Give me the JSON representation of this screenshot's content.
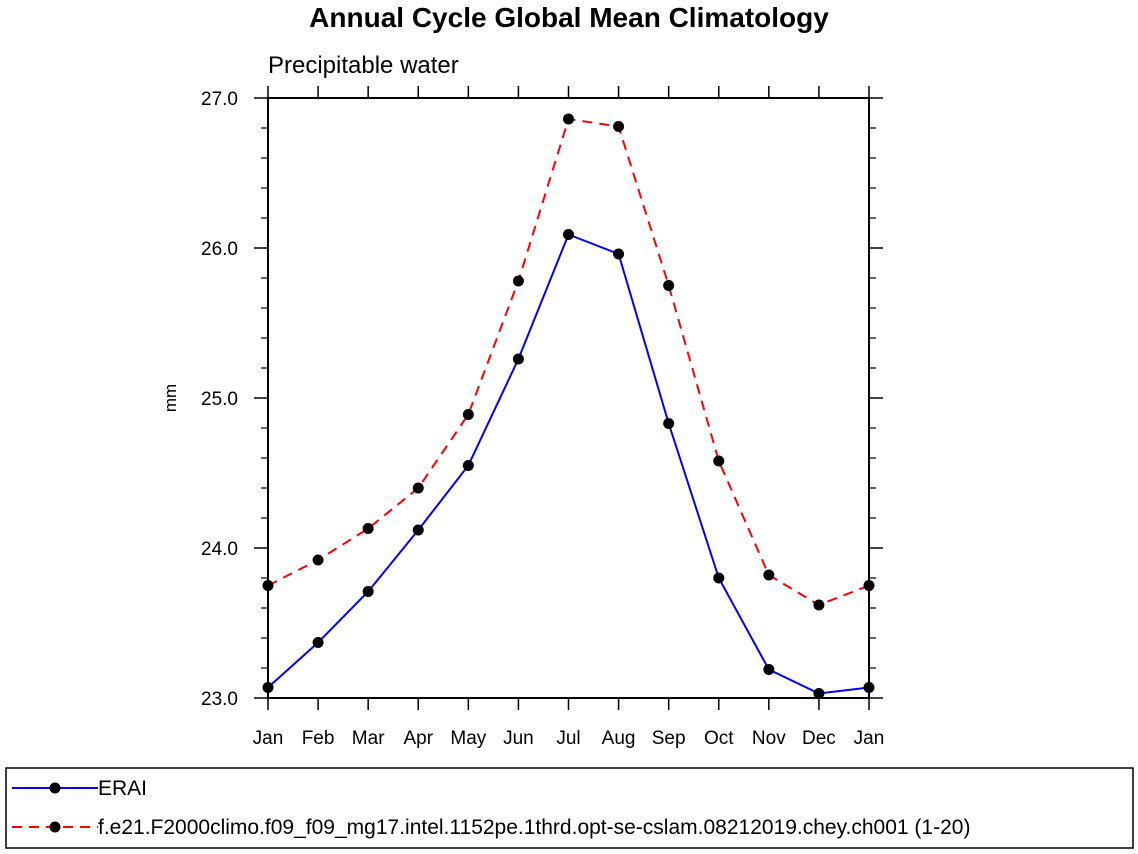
{
  "chart_data": {
    "type": "line",
    "title": "Annual Cycle Global Mean Climatology",
    "subtitle": "Precipitable water",
    "xlabel": "",
    "ylabel": "mm",
    "categories": [
      "Jan",
      "Feb",
      "Mar",
      "Apr",
      "May",
      "Jun",
      "Jul",
      "Aug",
      "Sep",
      "Oct",
      "Nov",
      "Dec",
      "Jan"
    ],
    "ylim": [
      23.0,
      27.0
    ],
    "yticks": [
      "23.0",
      "24.0",
      "25.0",
      "26.0",
      "27.0"
    ],
    "grid": false,
    "legend_position": "bottom",
    "series": [
      {
        "name": "ERAI",
        "color": "#0000ff",
        "line_style": "solid",
        "marker": "filled-circle",
        "values": [
          23.07,
          23.37,
          23.71,
          24.12,
          24.55,
          25.26,
          26.09,
          25.96,
          24.83,
          23.8,
          23.19,
          23.03,
          23.07
        ]
      },
      {
        "name": "f.e21.F2000climo.f09_f09_mg17.intel.1152pe.1thrd.opt-se-cslam.08212019.chey.ch001 (1-20)",
        "color": "#ff0000",
        "line_style": "dashed",
        "marker": "filled-circle",
        "values": [
          23.75,
          23.92,
          24.13,
          24.4,
          24.89,
          25.78,
          26.86,
          26.81,
          25.75,
          24.58,
          23.82,
          23.62,
          23.75
        ]
      }
    ]
  }
}
